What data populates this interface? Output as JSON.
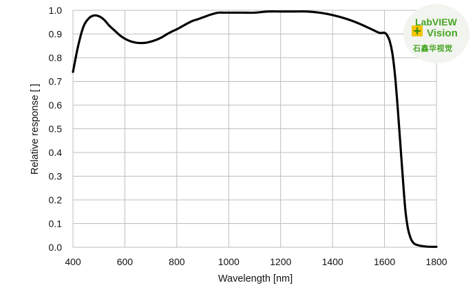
{
  "chart_data": {
    "type": "line",
    "title": "",
    "xlabel": "Wavelength [nm]",
    "ylabel": "Relative response [ ]",
    "xlim": [
      400,
      1800
    ],
    "ylim": [
      0.0,
      1.0
    ],
    "x_ticks": [
      "400",
      "600",
      "800",
      "1000",
      "1200",
      "1400",
      "1600",
      "1800"
    ],
    "y_ticks": [
      "0.0",
      "0.1",
      "0.2",
      "0.3",
      "0.4",
      "0.5",
      "0.6",
      "0.7",
      "0.8",
      "0.9",
      "1.0"
    ],
    "grid": true,
    "legend": "none",
    "series": [
      {
        "color": "#000000",
        "x": [
          400,
          420,
          440,
          460,
          480,
          500,
          520,
          540,
          560,
          580,
          600,
          620,
          640,
          660,
          680,
          700,
          720,
          740,
          760,
          780,
          800,
          820,
          840,
          860,
          880,
          900,
          920,
          940,
          960,
          980,
          1000,
          1050,
          1100,
          1150,
          1200,
          1250,
          1300,
          1350,
          1400,
          1450,
          1500,
          1550,
          1580,
          1600,
          1610,
          1620,
          1630,
          1640,
          1650,
          1660,
          1670,
          1680,
          1690,
          1700,
          1710,
          1720,
          1740,
          1760,
          1780,
          1800
        ],
        "y": [
          0.74,
          0.85,
          0.93,
          0.965,
          0.978,
          0.975,
          0.96,
          0.935,
          0.915,
          0.895,
          0.88,
          0.87,
          0.864,
          0.862,
          0.863,
          0.868,
          0.875,
          0.885,
          0.898,
          0.91,
          0.92,
          0.932,
          0.944,
          0.955,
          0.962,
          0.97,
          0.978,
          0.985,
          0.99,
          0.99,
          0.99,
          0.99,
          0.99,
          0.995,
          0.995,
          0.995,
          0.995,
          0.99,
          0.98,
          0.965,
          0.945,
          0.92,
          0.905,
          0.905,
          0.895,
          0.87,
          0.82,
          0.73,
          0.6,
          0.45,
          0.3,
          0.16,
          0.08,
          0.04,
          0.02,
          0.012,
          0.006,
          0.003,
          0.002,
          0.002
        ]
      }
    ]
  },
  "logo": {
    "line1": "LabVIEW",
    "line2": "Vision",
    "line3": "石鑫华视觉"
  }
}
